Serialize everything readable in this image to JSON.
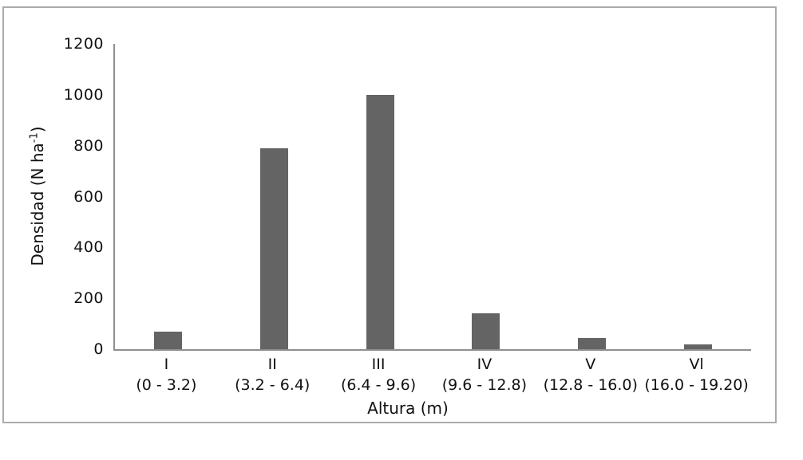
{
  "chart_data": {
    "type": "bar",
    "title": "",
    "xlabel": "Altura (m)",
    "ylabel": "Densidad (N ha⁻¹)",
    "ylabel_main": "Densidad (N ha",
    "ylabel_sup": "-1",
    "ylabel_close": ")",
    "categories": [
      "I",
      "II",
      "III",
      "IV",
      "V",
      "Vl"
    ],
    "category_ranges": [
      "(0 - 3.2)",
      "(3.2 - 6.4)",
      "(6.4 - 9.6)",
      "(9.6 - 12.8)",
      "(12.8 - 16.0)",
      "(16.0 - 19.20)"
    ],
    "values": [
      70,
      790,
      1000,
      140,
      45,
      20
    ],
    "ylim": [
      0,
      1200
    ],
    "ytick_step": 200,
    "yticks": [
      0,
      200,
      400,
      600,
      800,
      1000,
      1200
    ],
    "grid": "off",
    "legend": "none",
    "colors": {
      "bar": "#646464",
      "axis_line": "#8f8f8f",
      "frame_border": "#ababab",
      "text": "#111111",
      "background": "#ffffff"
    }
  }
}
